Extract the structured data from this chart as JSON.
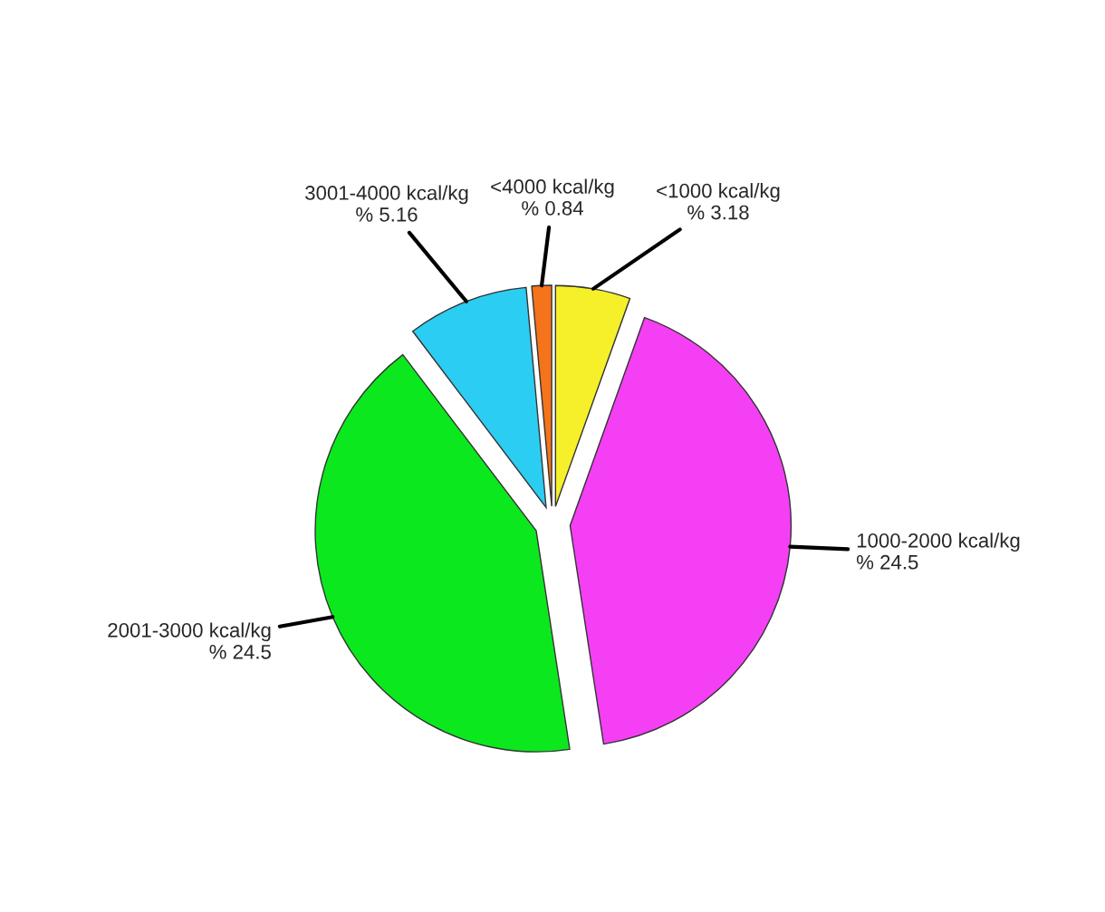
{
  "chart_data": {
    "type": "pie",
    "categories": [
      "<1000 kcal/kg",
      "1000-2000 kcal/kg",
      "2001-3000 kcal/kg",
      "3001-4000 kcal/kg",
      "<4000 kcal/kg"
    ],
    "values": [
      3.18,
      24.5,
      24.5,
      5.16,
      0.84
    ],
    "value_labels": [
      "% 3.18",
      "% 24.5",
      "% 24.5",
      "% 5.16",
      "% 0.84"
    ],
    "colors": [
      "#f5f02a",
      "#f53ff5",
      "#0ce81e",
      "#2ccdf2",
      "#f5731a"
    ],
    "legend": false
  }
}
